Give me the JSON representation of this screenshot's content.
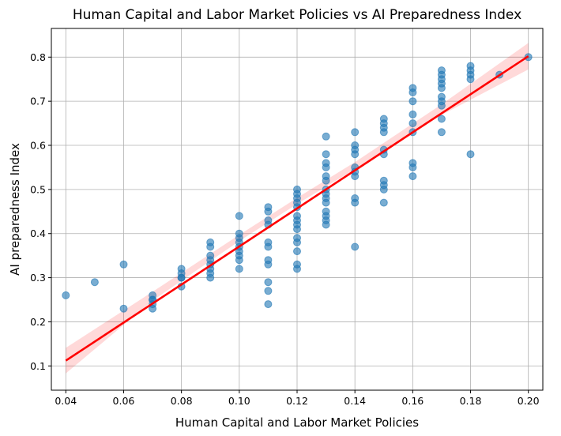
{
  "chart_data": {
    "type": "scatter",
    "title": "Human Capital and Labor Market Policies vs AI Preparedness Index",
    "xlabel": "Human Capital and Labor Market Policies",
    "ylabel": "AI preparedness Index",
    "xlim": [
      0.035,
      0.205
    ],
    "ylim": [
      0.045,
      0.865
    ],
    "xticks": [
      0.04,
      0.06,
      0.08,
      0.1,
      0.12,
      0.14,
      0.16,
      0.18,
      0.2
    ],
    "xtick_labels": [
      "0.04",
      "0.06",
      "0.08",
      "0.10",
      "0.12",
      "0.14",
      "0.16",
      "0.18",
      "0.20"
    ],
    "yticks": [
      0.1,
      0.2,
      0.3,
      0.4,
      0.5,
      0.6,
      0.7,
      0.8
    ],
    "ytick_labels": [
      "0.1",
      "0.2",
      "0.3",
      "0.4",
      "0.5",
      "0.6",
      "0.7",
      "0.8"
    ],
    "grid": true,
    "colors": {
      "points": "#1f77b4",
      "fit": "#ff0000",
      "band": "#ffc8c8"
    },
    "points": [
      [
        0.04,
        0.26
      ],
      [
        0.05,
        0.29
      ],
      [
        0.06,
        0.33
      ],
      [
        0.06,
        0.23
      ],
      [
        0.07,
        0.26
      ],
      [
        0.07,
        0.25
      ],
      [
        0.07,
        0.25
      ],
      [
        0.07,
        0.24
      ],
      [
        0.07,
        0.23
      ],
      [
        0.08,
        0.32
      ],
      [
        0.08,
        0.31
      ],
      [
        0.08,
        0.3
      ],
      [
        0.08,
        0.3
      ],
      [
        0.08,
        0.28
      ],
      [
        0.09,
        0.38
      ],
      [
        0.09,
        0.37
      ],
      [
        0.09,
        0.35
      ],
      [
        0.09,
        0.34
      ],
      [
        0.09,
        0.33
      ],
      [
        0.09,
        0.32
      ],
      [
        0.09,
        0.31
      ],
      [
        0.09,
        0.3
      ],
      [
        0.1,
        0.44
      ],
      [
        0.1,
        0.4
      ],
      [
        0.1,
        0.39
      ],
      [
        0.1,
        0.38
      ],
      [
        0.1,
        0.37
      ],
      [
        0.1,
        0.36
      ],
      [
        0.1,
        0.35
      ],
      [
        0.1,
        0.34
      ],
      [
        0.1,
        0.32
      ],
      [
        0.11,
        0.46
      ],
      [
        0.11,
        0.45
      ],
      [
        0.11,
        0.43
      ],
      [
        0.11,
        0.42
      ],
      [
        0.11,
        0.38
      ],
      [
        0.11,
        0.37
      ],
      [
        0.11,
        0.34
      ],
      [
        0.11,
        0.33
      ],
      [
        0.11,
        0.29
      ],
      [
        0.11,
        0.27
      ],
      [
        0.11,
        0.24
      ],
      [
        0.12,
        0.5
      ],
      [
        0.12,
        0.49
      ],
      [
        0.12,
        0.48
      ],
      [
        0.12,
        0.47
      ],
      [
        0.12,
        0.46
      ],
      [
        0.12,
        0.44
      ],
      [
        0.12,
        0.43
      ],
      [
        0.12,
        0.42
      ],
      [
        0.12,
        0.41
      ],
      [
        0.12,
        0.39
      ],
      [
        0.12,
        0.38
      ],
      [
        0.12,
        0.36
      ],
      [
        0.12,
        0.33
      ],
      [
        0.12,
        0.32
      ],
      [
        0.13,
        0.62
      ],
      [
        0.13,
        0.58
      ],
      [
        0.13,
        0.56
      ],
      [
        0.13,
        0.55
      ],
      [
        0.13,
        0.53
      ],
      [
        0.13,
        0.52
      ],
      [
        0.13,
        0.5
      ],
      [
        0.13,
        0.49
      ],
      [
        0.13,
        0.48
      ],
      [
        0.13,
        0.47
      ],
      [
        0.13,
        0.45
      ],
      [
        0.13,
        0.44
      ],
      [
        0.13,
        0.43
      ],
      [
        0.13,
        0.42
      ],
      [
        0.14,
        0.63
      ],
      [
        0.14,
        0.6
      ],
      [
        0.14,
        0.59
      ],
      [
        0.14,
        0.58
      ],
      [
        0.14,
        0.55
      ],
      [
        0.14,
        0.54
      ],
      [
        0.14,
        0.53
      ],
      [
        0.14,
        0.48
      ],
      [
        0.14,
        0.47
      ],
      [
        0.14,
        0.37
      ],
      [
        0.15,
        0.66
      ],
      [
        0.15,
        0.65
      ],
      [
        0.15,
        0.64
      ],
      [
        0.15,
        0.63
      ],
      [
        0.15,
        0.59
      ],
      [
        0.15,
        0.58
      ],
      [
        0.15,
        0.52
      ],
      [
        0.15,
        0.51
      ],
      [
        0.15,
        0.5
      ],
      [
        0.15,
        0.47
      ],
      [
        0.16,
        0.73
      ],
      [
        0.16,
        0.72
      ],
      [
        0.16,
        0.7
      ],
      [
        0.16,
        0.67
      ],
      [
        0.16,
        0.65
      ],
      [
        0.16,
        0.63
      ],
      [
        0.16,
        0.56
      ],
      [
        0.16,
        0.55
      ],
      [
        0.16,
        0.53
      ],
      [
        0.17,
        0.77
      ],
      [
        0.17,
        0.76
      ],
      [
        0.17,
        0.75
      ],
      [
        0.17,
        0.74
      ],
      [
        0.17,
        0.73
      ],
      [
        0.17,
        0.71
      ],
      [
        0.17,
        0.7
      ],
      [
        0.17,
        0.69
      ],
      [
        0.17,
        0.66
      ],
      [
        0.17,
        0.63
      ],
      [
        0.18,
        0.78
      ],
      [
        0.18,
        0.77
      ],
      [
        0.18,
        0.76
      ],
      [
        0.18,
        0.75
      ],
      [
        0.18,
        0.58
      ],
      [
        0.19,
        0.76
      ],
      [
        0.2,
        0.8
      ]
    ],
    "regression": {
      "x_start": 0.04,
      "y_start": 0.112,
      "x_end": 0.2,
      "y_end": 0.802
    },
    "confidence_band": {
      "x": [
        0.04,
        0.07,
        0.1,
        0.12,
        0.14,
        0.17,
        0.2
      ],
      "lower": [
        0.083,
        0.248,
        0.383,
        0.467,
        0.546,
        0.669,
        0.772
      ],
      "upper": [
        0.141,
        0.268,
        0.397,
        0.481,
        0.562,
        0.693,
        0.832
      ]
    }
  }
}
